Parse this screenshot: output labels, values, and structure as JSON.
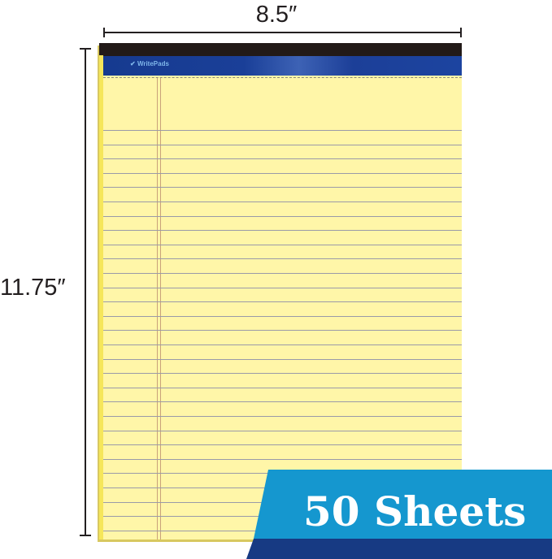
{
  "dimensions": {
    "width_label": "8.5″",
    "height_label": "11.75″"
  },
  "pad": {
    "brand": "WritePads",
    "paper_color": "#fff6a8",
    "header_color": "#1a3f98"
  },
  "banner": {
    "text": "50 Sheets",
    "color_light": "#1597cf",
    "color_dark": "#173a83"
  }
}
